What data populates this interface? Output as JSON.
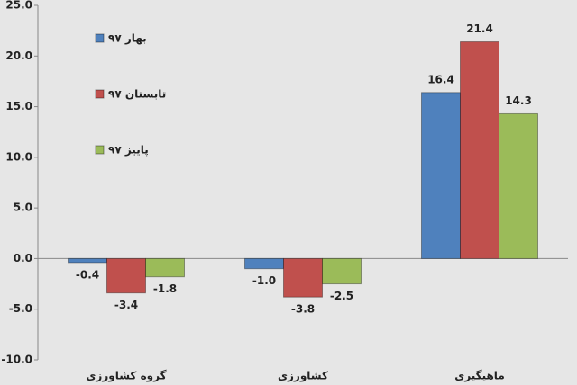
{
  "chart_data": {
    "type": "bar",
    "categories": [
      "گروه کشاورزی",
      "کشاورزی",
      "ماهیگیری"
    ],
    "series": [
      {
        "name": "بهار ۹۷",
        "color": "#4f81bd",
        "values": [
          -0.4,
          -1.0,
          16.4
        ],
        "value_labels": [
          "-0.4",
          "-1.0",
          "16.4"
        ]
      },
      {
        "name": "تابستان ۹۷",
        "color": "#c0504d",
        "values": [
          -3.4,
          -3.8,
          21.4
        ],
        "value_labels": [
          "-3.4",
          "-3.8",
          "21.4"
        ]
      },
      {
        "name": "پاییز ۹۷",
        "color": "#9bbb59",
        "values": [
          -1.8,
          -2.5,
          14.3
        ],
        "value_labels": [
          "-1.8",
          "-2.5",
          "14.3"
        ]
      }
    ],
    "ylim": [
      -10,
      25
    ],
    "yticks": [
      {
        "value": -10,
        "label": "-10.0"
      },
      {
        "value": -5,
        "label": "-5.0"
      },
      {
        "value": 0,
        "label": "0.0"
      },
      {
        "value": 5,
        "label": "5.0"
      },
      {
        "value": 10,
        "label": "10.0"
      },
      {
        "value": 15,
        "label": "15.0"
      },
      {
        "value": 20,
        "label": "20.0"
      },
      {
        "value": 25,
        "label": "25.0"
      }
    ],
    "legend": "top-left"
  }
}
